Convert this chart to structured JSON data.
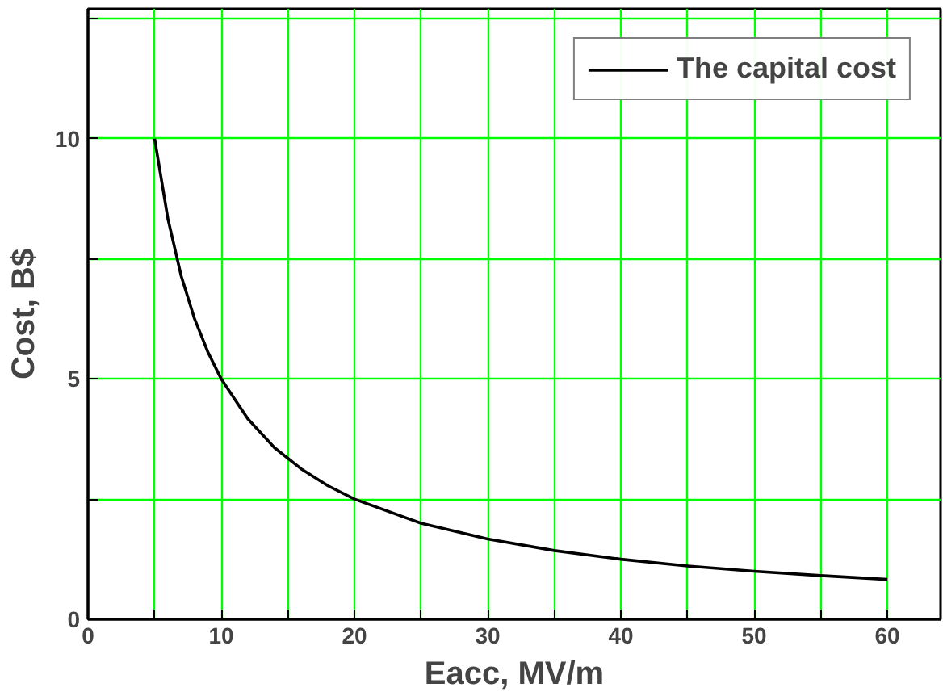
{
  "chart_data": {
    "type": "line",
    "xlabel": "Eacc, MV/m",
    "ylabel": "Cost, B$",
    "x": [
      5,
      6,
      7,
      8,
      9,
      10,
      12,
      14,
      16,
      18,
      20,
      25,
      30,
      35,
      40,
      45,
      50,
      55,
      60
    ],
    "series": [
      {
        "name": "The capital cost",
        "color": "#000000",
        "values": [
          10,
          8.33,
          7.14,
          6.25,
          5.56,
          5,
          4.17,
          3.57,
          3.13,
          2.78,
          2.5,
          2,
          1.67,
          1.43,
          1.25,
          1.11,
          1,
          0.91,
          0.83
        ]
      }
    ],
    "xlim": [
      0,
      64
    ],
    "ylim": [
      0,
      12.7
    ],
    "xticks": [
      0,
      {
        "value": 5,
        "label": null
      },
      10,
      {
        "value": 15,
        "label": null
      },
      20,
      {
        "value": 25,
        "label": null
      },
      30,
      {
        "value": 35,
        "label": null
      },
      40,
      {
        "value": 45,
        "label": null
      },
      50,
      {
        "value": 55,
        "label": null
      },
      60
    ],
    "yticks": [
      0,
      {
        "value": 2.5,
        "label": null
      },
      5,
      {
        "value": 7.5,
        "label": null
      },
      10,
      {
        "value": 12.5,
        "label": null
      }
    ],
    "grid": true,
    "legend": "top right",
    "marker": "none",
    "line_style": "solid"
  }
}
